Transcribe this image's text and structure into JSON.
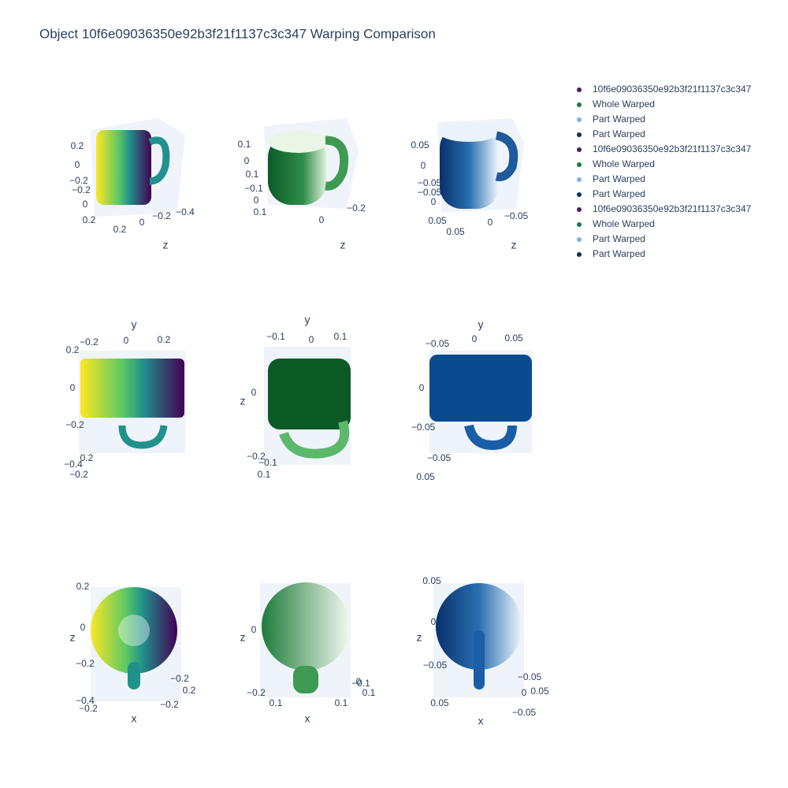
{
  "chart_data": {
    "type": "scatter3d",
    "title": "Object 10f6e09036350e92b3f21f1137c3c347 Warping Comparison",
    "series": [
      {
        "name": "10f6e09036350e92b3f21f1137c3c347",
        "color": "#4b1a6e"
      },
      {
        "name": "Whole Warped",
        "color": "#1b7a3c"
      },
      {
        "name": "Part Warped",
        "color": "#7fb2dc"
      },
      {
        "name": "Part Warped",
        "color": "#0d2f5e"
      },
      {
        "name": "10f6e09036350e92b3f21f1137c3c347",
        "color": "#4b1a6e"
      },
      {
        "name": "Whole Warped",
        "color": "#1b7a3c"
      },
      {
        "name": "Part Warped",
        "color": "#7fb2dc"
      },
      {
        "name": "Part Warped",
        "color": "#0d2f5e"
      },
      {
        "name": "10f6e09036350e92b3f21f1137c3c347",
        "color": "#4b1a6e"
      },
      {
        "name": "Whole Warped",
        "color": "#1b7a3c"
      },
      {
        "name": "Part Warped",
        "color": "#7fb2dc"
      },
      {
        "name": "Part Warped",
        "color": "#0d2f5e"
      }
    ],
    "scenes": [
      {
        "axis_titles": [
          "z"
        ],
        "tick_labels": [
          "0.2",
          "0",
          "−0.2",
          "−0.2",
          "0",
          "0.2",
          "0.2",
          "0",
          "−0.2",
          "−0.4"
        ]
      },
      {
        "axis_titles": [
          "z"
        ],
        "tick_labels": [
          "0.1",
          "0",
          "0.1",
          "−0.1",
          "0",
          "0.1",
          "0",
          "−0.2"
        ]
      },
      {
        "axis_titles": [
          "z"
        ],
        "tick_labels": [
          "0.05",
          "0",
          "−0.05",
          "−0.05",
          "0",
          "0.05",
          "0.05",
          "0",
          "−0.05"
        ]
      },
      {
        "axis_titles": [
          "y"
        ],
        "tick_labels": [
          "−0.2",
          "0",
          "0.2",
          "0.2",
          "0",
          "−0.2",
          "−0.4",
          "0.2",
          "−0.2"
        ]
      },
      {
        "axis_titles": [
          "y",
          "z"
        ],
        "tick_labels": [
          "−0.1",
          "0",
          "0.1",
          "0",
          "−0.2",
          "−0.1",
          "0.1"
        ]
      },
      {
        "axis_titles": [
          "y"
        ],
        "tick_labels": [
          "−0.05",
          "0",
          "0.05",
          "0",
          "−0.05",
          "−0.05",
          "0.05"
        ]
      },
      {
        "axis_titles": [
          "z",
          "x"
        ],
        "tick_labels": [
          "0.2",
          "0",
          "−0.2",
          "−0.4",
          "−0.2",
          "−0.2",
          "0.2",
          "−0.2"
        ]
      },
      {
        "axis_titles": [
          "z",
          "x"
        ],
        "tick_labels": [
          "0",
          "−0.2",
          "0.1",
          "0",
          "0.1",
          "−0.1",
          "0.1"
        ]
      },
      {
        "axis_titles": [
          "z",
          "x"
        ],
        "tick_labels": [
          "0.05",
          "0",
          "−0.05",
          "0.05",
          "0",
          "−0.05",
          "0.05",
          "−0.05"
        ]
      }
    ]
  }
}
